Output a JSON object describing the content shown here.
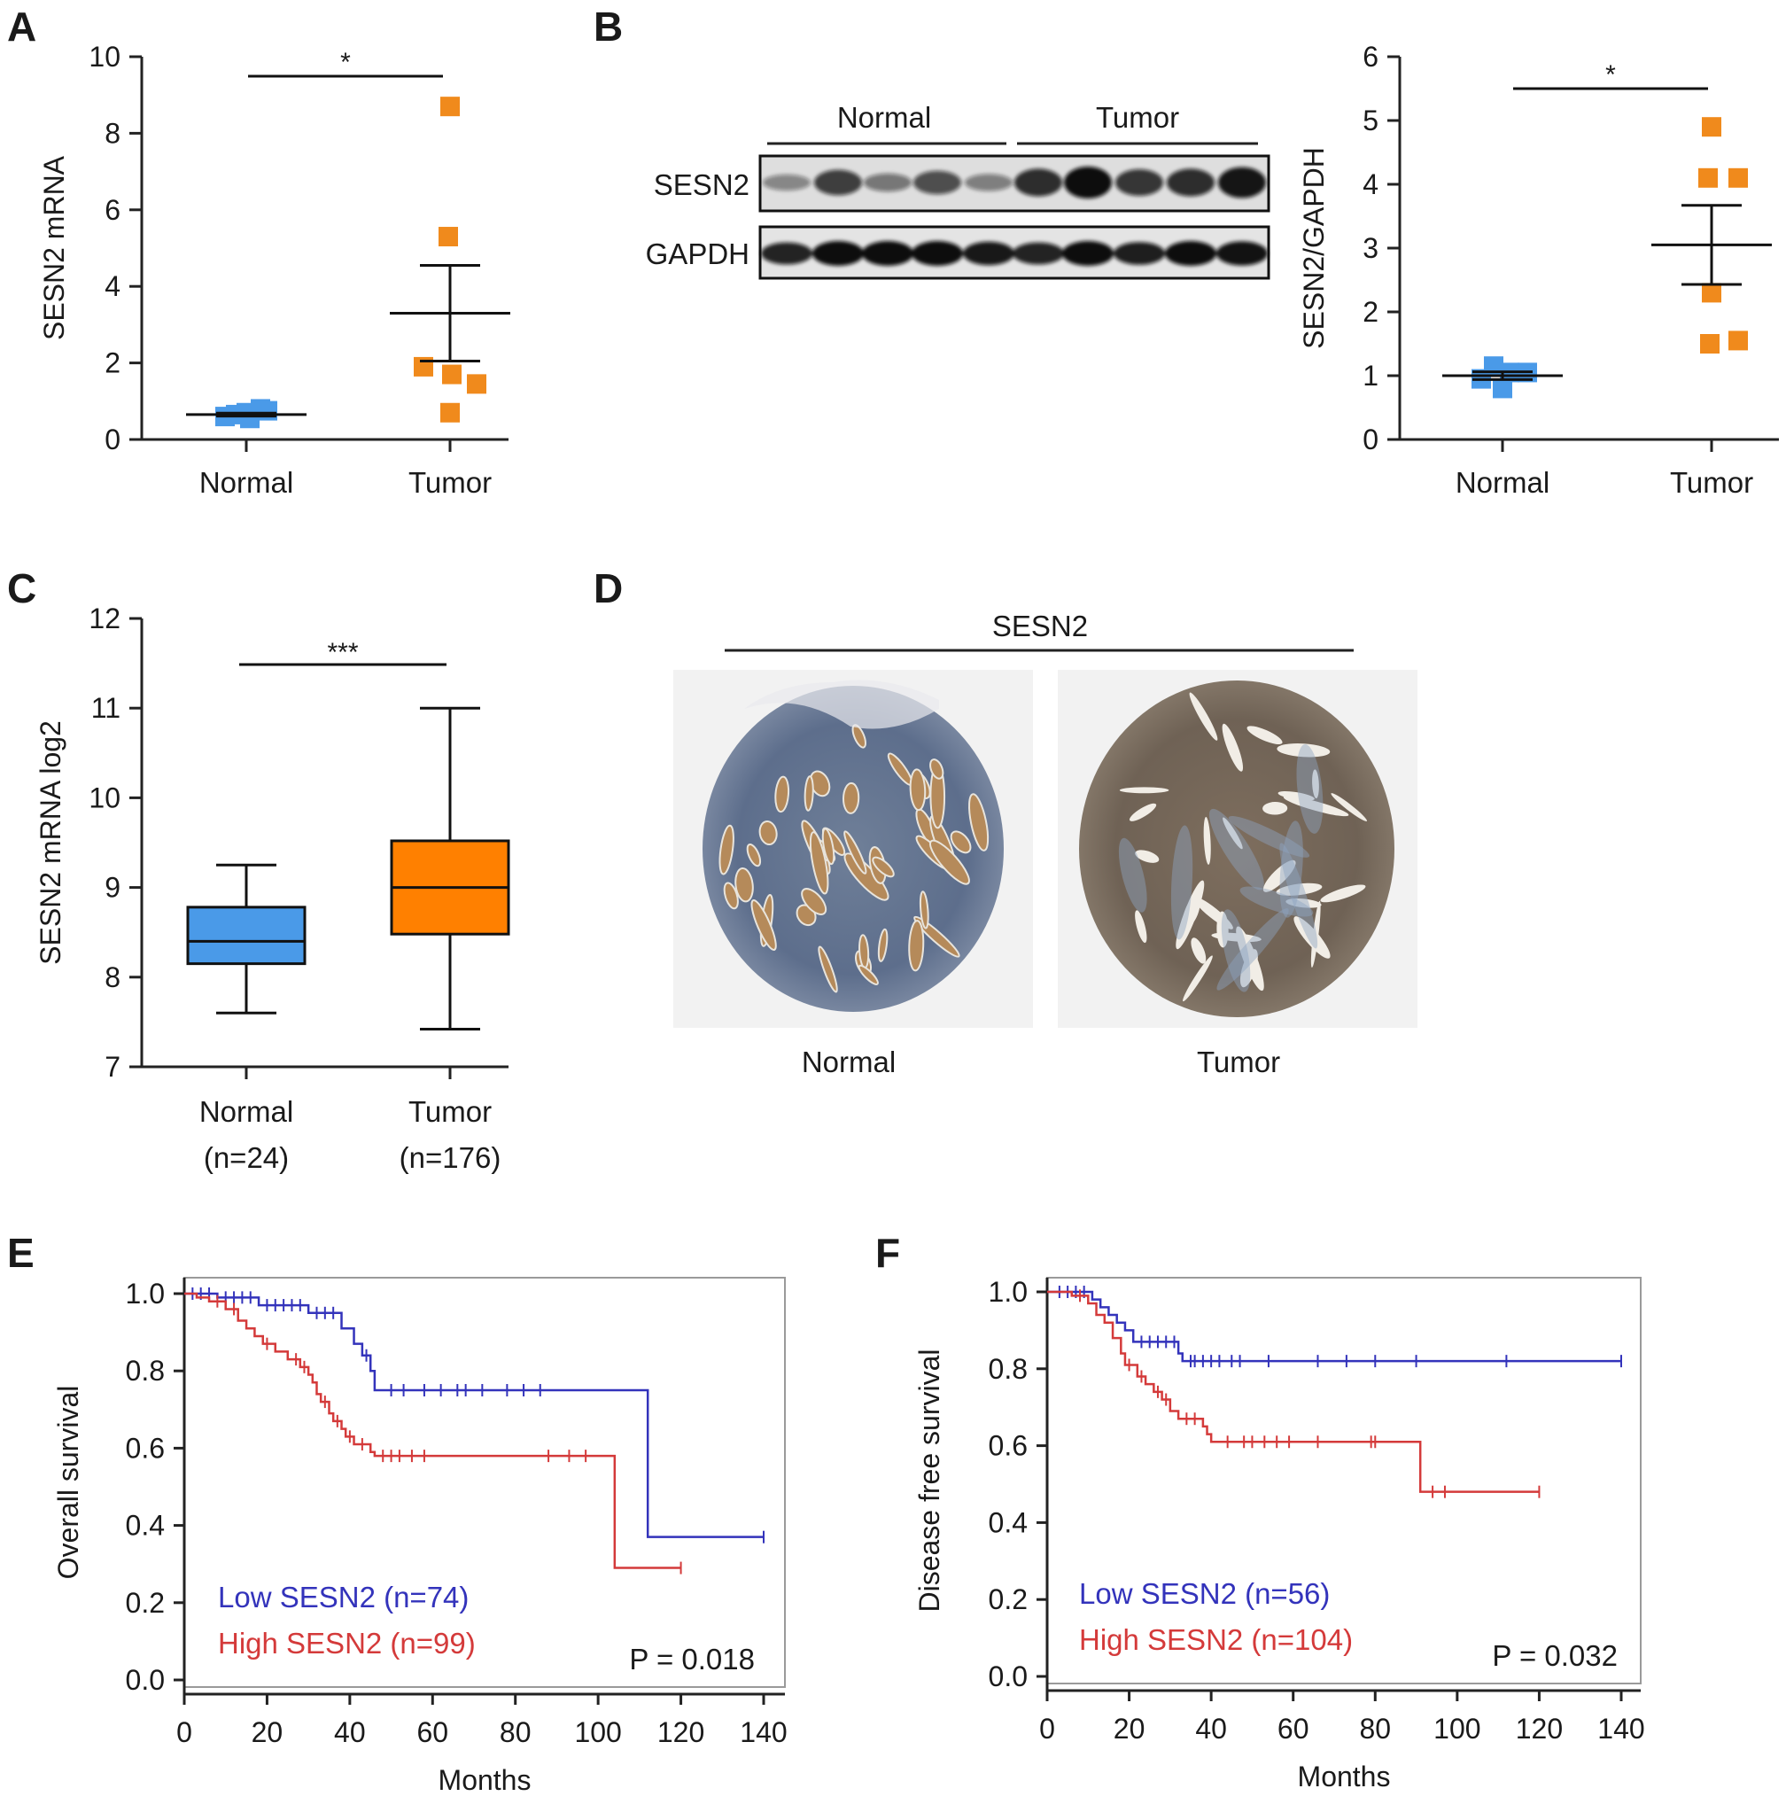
{
  "colors": {
    "normal": "#4a9ae8",
    "tumor": "#f08a1c",
    "box_normal": "#4a9ae8",
    "box_tumor": "#ff8000",
    "low": "#3333bb",
    "high": "#d43a3a"
  },
  "panel_labels": [
    "A",
    "B",
    "C",
    "D",
    "E",
    "F"
  ],
  "icons": {
    "western_blot": "western-blot-image",
    "ihc_normal": "ihc-tissue-normal-image",
    "ihc_tumor": "ihc-tissue-tumor-image"
  },
  "chart_data": [
    {
      "panel": "A",
      "type": "scatter",
      "ylabel": "SESN2 mRNA",
      "ylim": [
        0,
        10
      ],
      "yticks": [
        "0",
        "2",
        "4",
        "6",
        "8",
        "10"
      ],
      "categories": [
        "Normal",
        "Tumor"
      ],
      "significance": "*",
      "groups": [
        {
          "name": "Normal",
          "points": [
            0.7,
            0.6,
            0.75,
            0.55,
            0.65,
            0.8
          ],
          "mean": 0.65,
          "sem": 0.04
        },
        {
          "name": "Tumor",
          "points": [
            8.7,
            5.3,
            1.9,
            1.7,
            1.45,
            0.7
          ],
          "mean": 3.3,
          "sem": 1.25
        }
      ]
    },
    {
      "panel": "B",
      "type": "scatter",
      "ylabel": "SESN2/GAPDH",
      "ylim": [
        0,
        6
      ],
      "yticks": [
        "0",
        "1",
        "2",
        "3",
        "4",
        "5",
        "6"
      ],
      "categories": [
        "Normal",
        "Tumor"
      ],
      "significance": "*",
      "groups": [
        {
          "name": "Normal",
          "points": [
            1.15,
            1.05,
            0.95,
            0.8,
            1.05
          ],
          "mean": 1.0,
          "sem": 0.06
        },
        {
          "name": "Tumor",
          "points": [
            4.9,
            4.1,
            4.1,
            2.3,
            1.5,
            1.55
          ],
          "mean": 3.05,
          "sem": 0.62
        }
      ]
    },
    {
      "panel": "C",
      "type": "box",
      "ylabel": "SESN2 mRNA log2",
      "ylim": [
        7,
        12
      ],
      "yticks": [
        "7",
        "8",
        "9",
        "10",
        "11",
        "12"
      ],
      "categories": [
        "Normal",
        "Tumor"
      ],
      "category_counts": [
        "(n=24)",
        "(n=176)"
      ],
      "significance": "***",
      "boxes": [
        {
          "name": "Normal",
          "min": 7.6,
          "q1": 8.15,
          "median": 8.4,
          "q3": 8.78,
          "max": 9.25
        },
        {
          "name": "Tumor",
          "min": 7.42,
          "q1": 8.48,
          "median": 9.0,
          "q3": 9.52,
          "max": 11.0
        }
      ]
    },
    {
      "panel": "E",
      "type": "line",
      "ylabel": "Overall survival",
      "xlabel": "Months",
      "xlim": [
        0,
        140
      ],
      "ylim": [
        0,
        1
      ],
      "xticks": [
        "0",
        "20",
        "40",
        "60",
        "80",
        "100",
        "120",
        "140"
      ],
      "yticks": [
        "0.0",
        "0.2",
        "0.4",
        "0.6",
        "0.8",
        "1.0"
      ],
      "p_value": "P = 0.018",
      "series": [
        {
          "name": "Low SESN2 (n=74)",
          "color_key": "low",
          "steps": [
            [
              0,
              1.0
            ],
            [
              8,
              0.99
            ],
            [
              18,
              0.97
            ],
            [
              30,
              0.95
            ],
            [
              38,
              0.91
            ],
            [
              41,
              0.87
            ],
            [
              43,
              0.84
            ],
            [
              45,
              0.8
            ],
            [
              46,
              0.75
            ],
            [
              112,
              0.75
            ],
            [
              112,
              0.37
            ],
            [
              140,
              0.37
            ]
          ],
          "censors": [
            [
              2,
              1.0
            ],
            [
              4,
              1.0
            ],
            [
              6,
              1.0
            ],
            [
              10,
              0.99
            ],
            [
              12,
              0.99
            ],
            [
              14,
              0.99
            ],
            [
              16,
              0.99
            ],
            [
              20,
              0.97
            ],
            [
              22,
              0.97
            ],
            [
              24,
              0.97
            ],
            [
              26,
              0.97
            ],
            [
              28,
              0.97
            ],
            [
              32,
              0.95
            ],
            [
              34,
              0.95
            ],
            [
              36,
              0.95
            ],
            [
              44,
              0.84
            ],
            [
              50,
              0.75
            ],
            [
              53,
              0.75
            ],
            [
              58,
              0.75
            ],
            [
              62,
              0.75
            ],
            [
              66,
              0.75
            ],
            [
              68,
              0.75
            ],
            [
              72,
              0.75
            ],
            [
              78,
              0.75
            ],
            [
              82,
              0.75
            ],
            [
              86,
              0.75
            ],
            [
              140,
              0.37
            ]
          ]
        },
        {
          "name": "High SESN2 (n=99)",
          "color_key": "high",
          "steps": [
            [
              0,
              1.0
            ],
            [
              3,
              0.99
            ],
            [
              6,
              0.98
            ],
            [
              10,
              0.96
            ],
            [
              13,
              0.93
            ],
            [
              15,
              0.91
            ],
            [
              17,
              0.89
            ],
            [
              19,
              0.87
            ],
            [
              22,
              0.85
            ],
            [
              25,
              0.83
            ],
            [
              28,
              0.81
            ],
            [
              30,
              0.79
            ],
            [
              31,
              0.77
            ],
            [
              32,
              0.74
            ],
            [
              33,
              0.72
            ],
            [
              35,
              0.69
            ],
            [
              36,
              0.67
            ],
            [
              38,
              0.65
            ],
            [
              39,
              0.63
            ],
            [
              41,
              0.61
            ],
            [
              45,
              0.59
            ],
            [
              46,
              0.58
            ],
            [
              104,
              0.58
            ],
            [
              104,
              0.29
            ],
            [
              120,
              0.29
            ]
          ],
          "censors": [
            [
              8,
              0.98
            ],
            [
              12,
              0.96
            ],
            [
              20,
              0.87
            ],
            [
              27,
              0.83
            ],
            [
              29,
              0.81
            ],
            [
              34,
              0.72
            ],
            [
              37,
              0.67
            ],
            [
              40,
              0.63
            ],
            [
              43,
              0.61
            ],
            [
              48,
              0.58
            ],
            [
              50,
              0.58
            ],
            [
              52,
              0.58
            ],
            [
              55,
              0.58
            ],
            [
              58,
              0.58
            ],
            [
              88,
              0.58
            ],
            [
              93,
              0.58
            ],
            [
              97,
              0.58
            ],
            [
              120,
              0.29
            ]
          ]
        }
      ]
    },
    {
      "panel": "F",
      "type": "line",
      "ylabel": "Disease free survival",
      "xlabel": "Months",
      "xlim": [
        0,
        140
      ],
      "ylim": [
        0,
        1
      ],
      "xticks": [
        "0",
        "20",
        "40",
        "60",
        "80",
        "100",
        "120",
        "140"
      ],
      "yticks": [
        "0.0",
        "0.2",
        "0.4",
        "0.6",
        "0.8",
        "1.0"
      ],
      "p_value": "P = 0.032",
      "series": [
        {
          "name": "Low SESN2 (n=56)",
          "color_key": "low",
          "steps": [
            [
              0,
              1.0
            ],
            [
              11,
              0.98
            ],
            [
              13,
              0.96
            ],
            [
              15,
              0.94
            ],
            [
              17,
              0.92
            ],
            [
              19,
              0.9
            ],
            [
              21,
              0.87
            ],
            [
              32,
              0.84
            ],
            [
              33,
              0.82
            ],
            [
              140,
              0.82
            ]
          ],
          "censors": [
            [
              3,
              1.0
            ],
            [
              5,
              1.0
            ],
            [
              7,
              1.0
            ],
            [
              9,
              1.0
            ],
            [
              23,
              0.87
            ],
            [
              25,
              0.87
            ],
            [
              27,
              0.87
            ],
            [
              29,
              0.87
            ],
            [
              31,
              0.87
            ],
            [
              35,
              0.82
            ],
            [
              36,
              0.82
            ],
            [
              38,
              0.82
            ],
            [
              40,
              0.82
            ],
            [
              42,
              0.82
            ],
            [
              45,
              0.82
            ],
            [
              47,
              0.82
            ],
            [
              54,
              0.82
            ],
            [
              66,
              0.82
            ],
            [
              73,
              0.82
            ],
            [
              80,
              0.82
            ],
            [
              90,
              0.82
            ],
            [
              112,
              0.82
            ],
            [
              140,
              0.82
            ]
          ]
        },
        {
          "name": "High SESN2 (n=104)",
          "color_key": "high",
          "steps": [
            [
              0,
              1.0
            ],
            [
              6,
              0.99
            ],
            [
              10,
              0.97
            ],
            [
              12,
              0.94
            ],
            [
              14,
              0.92
            ],
            [
              16,
              0.88
            ],
            [
              18,
              0.84
            ],
            [
              19,
              0.81
            ],
            [
              22,
              0.78
            ],
            [
              24,
              0.76
            ],
            [
              26,
              0.74
            ],
            [
              28,
              0.72
            ],
            [
              30,
              0.69
            ],
            [
              32,
              0.67
            ],
            [
              38,
              0.65
            ],
            [
              39,
              0.63
            ],
            [
              40,
              0.61
            ],
            [
              91,
              0.61
            ],
            [
              91,
              0.48
            ],
            [
              120,
              0.48
            ]
          ],
          "censors": [
            [
              8,
              0.99
            ],
            [
              20,
              0.81
            ],
            [
              23,
              0.78
            ],
            [
              27,
              0.74
            ],
            [
              29,
              0.72
            ],
            [
              34,
              0.67
            ],
            [
              36,
              0.67
            ],
            [
              44,
              0.61
            ],
            [
              48,
              0.61
            ],
            [
              50,
              0.61
            ],
            [
              53,
              0.61
            ],
            [
              56,
              0.61
            ],
            [
              59,
              0.61
            ],
            [
              66,
              0.61
            ],
            [
              79,
              0.61
            ],
            [
              80,
              0.61
            ],
            [
              94,
              0.48
            ],
            [
              97,
              0.48
            ],
            [
              120,
              0.48
            ]
          ]
        }
      ]
    }
  ],
  "blot": {
    "groups": [
      "Normal",
      "Tumor"
    ],
    "rows": [
      "SESN2",
      "GAPDH"
    ]
  },
  "ihc": {
    "title": "SESN2",
    "labels": [
      "Normal",
      "Tumor"
    ]
  }
}
